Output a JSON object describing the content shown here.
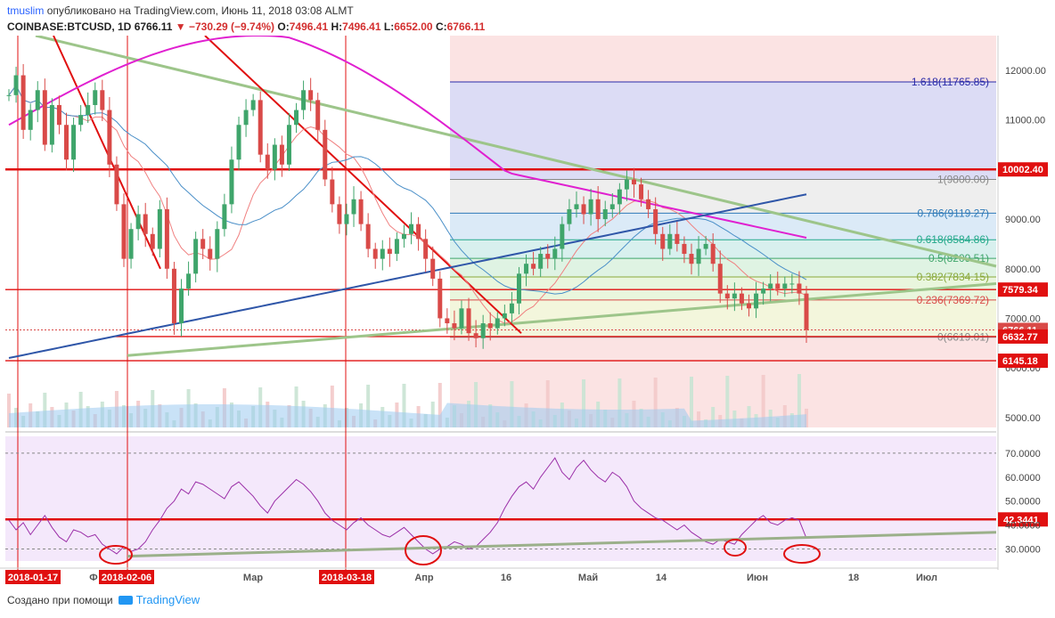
{
  "header": {
    "user": "tmuslim",
    "published": "опубликовано на TradingView.com, Июнь 11, 2018 03:08 ALMT",
    "symbol": "COINBASE:BTCUSD, 1D",
    "last": "6766.11",
    "change": "−730.29 (−9.74%)",
    "o_label": "O:",
    "o": "7496.41",
    "h_label": "H:",
    "h": "7496.41",
    "l_label": "L:",
    "l": "6652.00",
    "c_label": "C:",
    "c": "6766.11"
  },
  "footer": {
    "created_with": "Создано при помощи",
    "brand": "TradingView"
  },
  "colors": {
    "up": "#3fa56b",
    "down": "#d94a48",
    "level_red": "#e01010",
    "trend_green": "#9dc58a",
    "ma_blue": "#2f56a8",
    "ma_magenta": "#e020d0",
    "rsi": "#9b2fa8",
    "fib_bg_top": "#dcdcf5"
  },
  "chart_data": [
    {
      "type": "candlestick",
      "symbol": "COINBASE:BTCUSD",
      "interval": "1D",
      "y_ticks": [
        5000,
        6000,
        7000,
        8000,
        9000,
        10000,
        11000,
        12000
      ],
      "y_tick_labels": [
        "5000.00",
        "6000.00",
        "7000.00",
        "8000.00",
        "9000.00",
        "10000.00",
        "11000.00",
        "12000.00"
      ],
      "ylim": [
        4800,
        12700
      ],
      "x_ticks": [
        "Ф",
        "Мар",
        "Апр",
        "16",
        "Май",
        "14",
        "Июн",
        "18",
        "Июл"
      ],
      "x_highlight_labels": [
        "2018-01-17",
        "2018-02-06",
        "2018-03-18"
      ],
      "price_labels": [
        {
          "value": 10002.4,
          "text": "10002.40",
          "color": "#e01010"
        },
        {
          "value": 7579.34,
          "text": "7579.34",
          "color": "#e01010"
        },
        {
          "value": 6766.11,
          "text": "6766.11",
          "color": "#d94a48"
        },
        {
          "value": 6632.77,
          "text": "6632.77",
          "color": "#e01010"
        },
        {
          "value": 6145.18,
          "text": "6145.18",
          "color": "#e01010"
        }
      ],
      "fibonacci": [
        {
          "ratio": "1.618",
          "value": 11765.85,
          "text": "1.618(11765.85)",
          "color": "#2a2aa8"
        },
        {
          "ratio": "1",
          "value": 9800.0,
          "text": "1(9800.00)",
          "color": "#888888"
        },
        {
          "ratio": "0.786",
          "value": 9119.27,
          "text": "0.786(9119.27)",
          "color": "#2f7ab8"
        },
        {
          "ratio": "0.618",
          "value": 8584.86,
          "text": "0.618(8584.86)",
          "color": "#22a88a"
        },
        {
          "ratio": "0.5",
          "value": 8209.51,
          "text": "0.5(8209.51)",
          "color": "#3fa56b"
        },
        {
          "ratio": "0.382",
          "value": 7834.15,
          "text": "0.382(7834.15)",
          "color": "#8aa83a"
        },
        {
          "ratio": "0.236",
          "value": 7369.72,
          "text": "0.236(7369.72)",
          "color": "#d94a48"
        },
        {
          "ratio": "0",
          "value": 6619.01,
          "text": "0(6619.01)",
          "color": "#888888"
        }
      ],
      "candles_close": [
        11500,
        11900,
        10800,
        11200,
        11600,
        10500,
        11300,
        10900,
        10200,
        10900,
        11100,
        11300,
        11600,
        11200,
        10100,
        9300,
        8200,
        8800,
        9100,
        8700,
        8400,
        9200,
        8000,
        6900,
        7600,
        7900,
        8600,
        8400,
        8200,
        8800,
        9300,
        10200,
        10900,
        11200,
        11400,
        10300,
        10000,
        10500,
        10100,
        10900,
        11200,
        11600,
        11400,
        10800,
        9800,
        9300,
        8900,
        9100,
        9400,
        8900,
        8400,
        8200,
        8400,
        8300,
        8600,
        8700,
        8900,
        8600,
        8200,
        7800,
        7000,
        6900,
        6800,
        7200,
        6700,
        6600,
        6900,
        6800,
        7000,
        7100,
        7300,
        7900,
        8100,
        8000,
        8300,
        8200,
        8400,
        8900,
        9200,
        9300,
        9100,
        9400,
        9000,
        9200,
        9300,
        9600,
        9800,
        9700,
        9400,
        9200,
        8700,
        8400,
        8700,
        8500,
        8300,
        8100,
        8400,
        8500,
        8100,
        7500,
        7400,
        7500,
        7300,
        7200,
        7500,
        7600,
        7700,
        7600,
        7700,
        7700,
        7500,
        6766.11
      ]
    },
    {
      "type": "line",
      "name": "RSI",
      "y_ticks": [
        30,
        40,
        50,
        60,
        70
      ],
      "y_tick_labels": [
        "30.0000",
        "40.0000",
        "50.0000",
        "60.0000",
        "70.0000"
      ],
      "ylim": [
        25,
        77
      ],
      "levels": [
        {
          "value": 42.3441,
          "text": "42.3441",
          "color": "#e01010"
        }
      ],
      "values": [
        42,
        38,
        41,
        36,
        40,
        44,
        39,
        35,
        33,
        38,
        37,
        35,
        36,
        32,
        30,
        28,
        31,
        29,
        30,
        33,
        38,
        42,
        47,
        50,
        55,
        53,
        58,
        57,
        55,
        53,
        51,
        56,
        58,
        55,
        52,
        48,
        45,
        50,
        53,
        56,
        59,
        57,
        54,
        50,
        45,
        42,
        40,
        38,
        41,
        43,
        40,
        38,
        36,
        35,
        37,
        39,
        36,
        33,
        30,
        28,
        30,
        31,
        33,
        32,
        30,
        31,
        34,
        37,
        41,
        47,
        52,
        56,
        58,
        55,
        60,
        64,
        68,
        62,
        59,
        64,
        67,
        63,
        60,
        58,
        62,
        60,
        56,
        50,
        47,
        45,
        43,
        42,
        40,
        38,
        40,
        37,
        35,
        33,
        32,
        34,
        33,
        32,
        36,
        39,
        42,
        44,
        41,
        40,
        42,
        43,
        42,
        34.5
      ]
    }
  ]
}
